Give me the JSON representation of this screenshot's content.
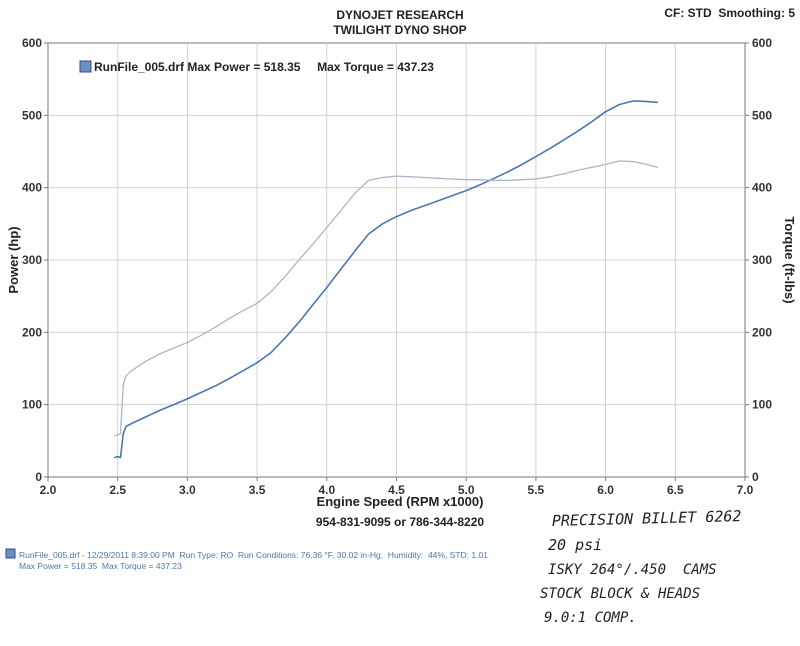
{
  "header": {
    "title_line1": "DYNOJET RESEARCH",
    "title_line2": "TWILIGHT DYNO SHOP",
    "settings": "CF: STD  Smoothing: 5"
  },
  "footer": {
    "phone": "954-831-9095 or 786-344-8220",
    "run_line1": "RunFile_005.drf - 12/29/2011 8:39:00 PM  Run Type: RO  Run Conditions: 76.36 °F, 30.02 in-Hg,  Humidity:  44%, STD: 1.01",
    "run_line2": "Max Power = 518.35  Max Torque = 437.23"
  },
  "handwritten_notes": [
    "PRECISION BILLET 6262",
    "20 psi",
    "ISKY 264°/.450  CAMS",
    "STOCK BLOCK & HEADS",
    "9.0:1 COMP."
  ],
  "colors": {
    "power": "#4a78b0",
    "torque": "#a9b6cc",
    "grid": "#d2d2d2",
    "axis_text": "#333333",
    "legend_box": "#6b8fc2"
  },
  "chart_data": {
    "type": "line",
    "legend": "RunFile_005.drf Max Power = 518.35     Max Torque = 437.23",
    "xlabel": "Engine Speed (RPM x1000)",
    "ylabel": "Power (hp)",
    "y2label": "Torque (ft-lbs)",
    "xlim": [
      2.0,
      7.0
    ],
    "ylim": [
      0,
      600
    ],
    "y2lim": [
      0,
      600
    ],
    "grid": true,
    "x_ticks": [
      "2.0",
      "2.5",
      "3.0",
      "3.5",
      "4.0",
      "4.5",
      "5.0",
      "5.5",
      "6.0",
      "6.5",
      "7.0"
    ],
    "y_ticks": [
      "0",
      "100",
      "200",
      "300",
      "400",
      "500",
      "600"
    ],
    "series": [
      {
        "key": "power",
        "x": [
          2.48,
          2.5,
          2.52,
          2.54,
          2.56,
          2.6,
          2.7,
          2.8,
          2.9,
          3.0,
          3.1,
          3.2,
          3.3,
          3.4,
          3.5,
          3.6,
          3.7,
          3.8,
          3.9,
          4.0,
          4.1,
          4.2,
          4.3,
          4.4,
          4.5,
          4.6,
          4.7,
          4.8,
          4.9,
          5.0,
          5.1,
          5.2,
          5.3,
          5.4,
          5.5,
          5.6,
          5.7,
          5.8,
          5.9,
          6.0,
          6.1,
          6.2,
          6.3,
          6.37
        ],
        "y": [
          27,
          28,
          27,
          60,
          70,
          74,
          83,
          92,
          100,
          108,
          117,
          126,
          136,
          147,
          158,
          172,
          192,
          214,
          238,
          262,
          287,
          312,
          336,
          350,
          360,
          368,
          375,
          382,
          389,
          396,
          404,
          413,
          422,
          432,
          443,
          454,
          466,
          478,
          491,
          505,
          515,
          520,
          519,
          518
        ]
      },
      {
        "key": "torque",
        "x": [
          2.48,
          2.52,
          2.54,
          2.56,
          2.6,
          2.7,
          2.8,
          2.9,
          3.0,
          3.1,
          3.2,
          3.3,
          3.4,
          3.5,
          3.6,
          3.7,
          3.8,
          3.9,
          4.0,
          4.1,
          4.2,
          4.3,
          4.4,
          4.5,
          4.6,
          4.7,
          4.8,
          4.9,
          5.0,
          5.1,
          5.2,
          5.3,
          5.4,
          5.5,
          5.6,
          5.7,
          5.8,
          5.9,
          6.0,
          6.1,
          6.2,
          6.3,
          6.37
        ],
        "y": [
          57,
          60,
          128,
          140,
          147,
          160,
          170,
          178,
          186,
          196,
          207,
          219,
          230,
          240,
          256,
          277,
          300,
          322,
          345,
          368,
          392,
          410,
          414,
          416,
          415,
          414,
          413,
          412,
          411,
          411,
          410,
          410,
          411,
          412,
          415,
          419,
          424,
          428,
          432,
          437,
          436,
          432,
          428
        ]
      }
    ]
  }
}
